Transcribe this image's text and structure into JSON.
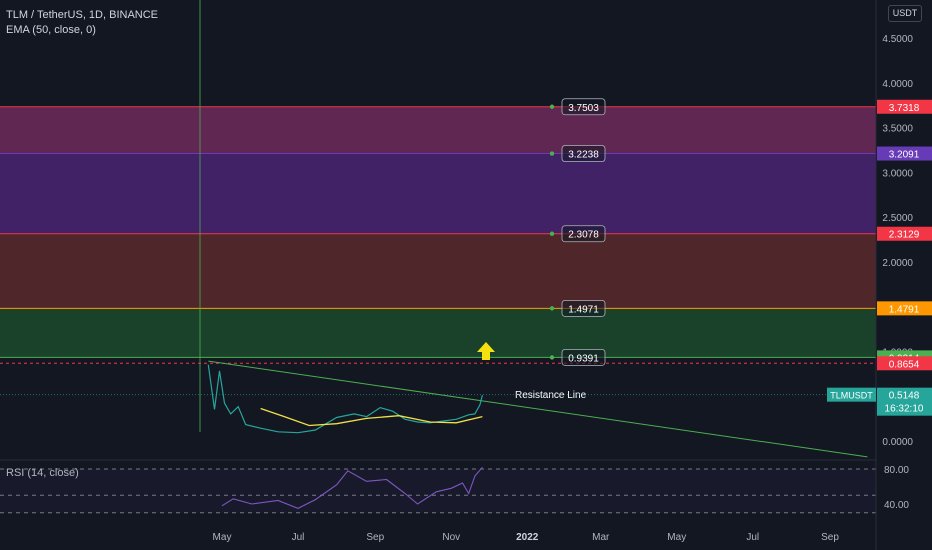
{
  "header": {
    "symbol_line": "TLM / TetherUS, 1D, BINANCE",
    "indicator_line": "EMA (50, close, 0)",
    "currency": "USDT"
  },
  "rsi_panel": {
    "label": "RSI (14, close)",
    "ticks": [
      "80.00",
      "40.00"
    ]
  },
  "colors": {
    "background": "#131722",
    "zone_purple": "#6d2a5a",
    "zone_indigo": "#4a2572",
    "zone_red": "#5a2a2d",
    "zone_green": "#1c4a2c",
    "ema": "#f2e144",
    "rsi": "#7e57c2",
    "arrow": "#f5e10f",
    "trendline": "#4caf50"
  },
  "chart_data": {
    "type": "line",
    "title": "TLM / TetherUS, 1D, BINANCE",
    "xlabel": "",
    "ylabel": "",
    "x_ticks": [
      "May",
      "Jul",
      "Sep",
      "Nov",
      "2022",
      "Mar",
      "May",
      "Jul",
      "Sep"
    ],
    "y_ticks": [
      "4.5000",
      "4.0000",
      "3.5000",
      "3.0000",
      "2.5000",
      "2.0000",
      "1.5000",
      "1.0000",
      "0.5000",
      "0.0000"
    ],
    "ylim": [
      -0.2,
      4.9
    ],
    "grid": false,
    "levels": [
      {
        "label": "3.7503",
        "axis_value": "3.7318",
        "value": 3.7318,
        "color": "#f23645"
      },
      {
        "label": "3.2238",
        "axis_value": "3.2091",
        "value": 3.2091,
        "color": "#673ab7"
      },
      {
        "label": "2.3078",
        "axis_value": "2.3129",
        "value": 2.3129,
        "color": "#f23645"
      },
      {
        "label": "1.4971",
        "axis_value": "1.4791",
        "value": 1.4791,
        "color": "#ff9800"
      },
      {
        "label": "0.9391",
        "axis_value": "0.9314",
        "value": 0.9314,
        "color": "#4caf50"
      }
    ],
    "dashed_level": {
      "value": 0.8654,
      "label": "0.8654",
      "color": "#f23645"
    },
    "last_price": {
      "symbol": "TLMUSDT",
      "value": "0.5148",
      "countdown": "16:32:10"
    },
    "annotation": "Resistance Line",
    "series": [
      {
        "type": "price",
        "x": [
          "2021-04-20",
          "2021-04-25",
          "2021-04-29",
          "2021-05-03",
          "2021-05-08",
          "2021-05-14",
          "2021-05-20",
          "2021-06-01",
          "2021-06-15",
          "2021-07-01",
          "2021-07-15",
          "2021-08-01",
          "2021-08-15",
          "2021-08-25",
          "2021-09-05",
          "2021-09-15",
          "2021-09-25",
          "2021-10-05",
          "2021-10-15",
          "2021-10-25",
          "2021-11-05",
          "2021-11-15",
          "2021-11-20",
          "2021-11-24",
          "2021-11-26"
        ],
        "values": [
          0.85,
          0.35,
          0.78,
          0.42,
          0.3,
          0.38,
          0.18,
          0.14,
          0.1,
          0.09,
          0.12,
          0.26,
          0.3,
          0.27,
          0.37,
          0.33,
          0.24,
          0.21,
          0.2,
          0.22,
          0.24,
          0.29,
          0.3,
          0.4,
          0.51
        ]
      },
      {
        "type": "ema",
        "name": "EMA (50, close, 0)",
        "x": [
          "2021-06-01",
          "2021-06-20",
          "2021-07-10",
          "2021-08-01",
          "2021-08-25",
          "2021-09-20",
          "2021-10-15",
          "2021-11-05",
          "2021-11-26"
        ],
        "values": [
          0.36,
          0.27,
          0.17,
          0.19,
          0.25,
          0.28,
          0.21,
          0.2,
          0.27
        ]
      },
      {
        "type": "rsi",
        "name": "RSI (14, close)",
        "x": [
          "2021-05-01",
          "2021-05-10",
          "2021-05-25",
          "2021-06-15",
          "2021-07-01",
          "2021-07-15",
          "2021-08-01",
          "2021-08-10",
          "2021-08-25",
          "2021-09-10",
          "2021-09-25",
          "2021-10-05",
          "2021-10-20",
          "2021-11-01",
          "2021-11-10",
          "2021-11-15",
          "2021-11-20",
          "2021-11-26"
        ],
        "values": [
          38,
          46,
          40,
          44,
          35,
          45,
          62,
          78,
          66,
          68,
          52,
          40,
          54,
          58,
          64,
          52,
          72,
          82
        ]
      }
    ],
    "trendline": {
      "x": [
        "2021-04-20",
        "2022-10-01"
      ],
      "values": [
        0.89,
        -0.18
      ]
    }
  }
}
